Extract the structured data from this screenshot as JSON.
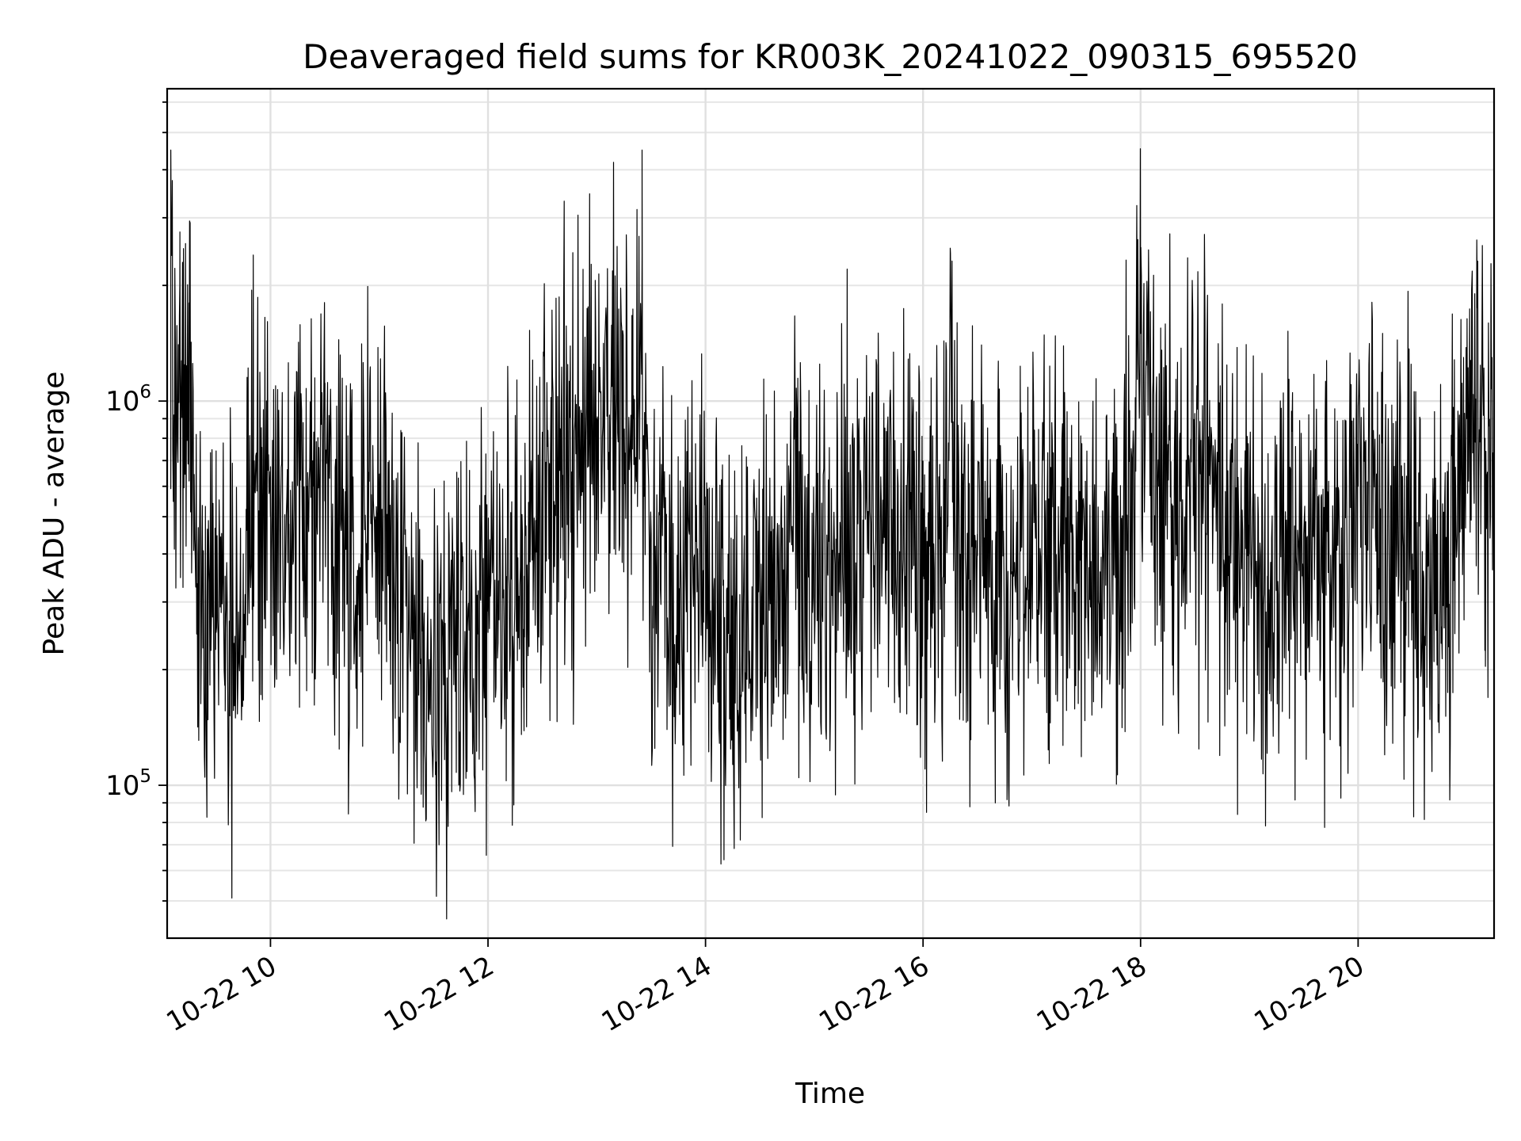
{
  "chart_data": {
    "type": "line",
    "title": "Deaveraged field sums for KR003K_20241022_090315_695520",
    "xlabel": "Time",
    "ylabel": "Peak ADU - average",
    "yscale": "log",
    "grid": true,
    "xlim": [
      "2024-10-22T09:03",
      "2024-10-22T21:15"
    ],
    "ylim": [
      40000,
      6500000
    ],
    "xticks": [
      {
        "time": "2024-10-22T10:00",
        "label": "10-22 10"
      },
      {
        "time": "2024-10-22T12:00",
        "label": "10-22 12"
      },
      {
        "time": "2024-10-22T14:00",
        "label": "10-22 14"
      },
      {
        "time": "2024-10-22T16:00",
        "label": "10-22 16"
      },
      {
        "time": "2024-10-22T18:00",
        "label": "10-22 18"
      },
      {
        "time": "2024-10-22T20:00",
        "label": "10-22 20"
      }
    ],
    "yticks": [
      {
        "value": 100000,
        "base": "10",
        "exp": "5"
      },
      {
        "value": 1000000,
        "base": "10",
        "exp": "6"
      }
    ],
    "series": [
      {
        "color": "#000000",
        "x": [
          "2024-10-22T09:05",
          "2024-10-22T09:10",
          "2024-10-22T09:15",
          "2024-10-22T09:20",
          "2024-10-22T09:25",
          "2024-10-22T09:30",
          "2024-10-22T09:35",
          "2024-10-22T09:40",
          "2024-10-22T09:45",
          "2024-10-22T09:50",
          "2024-10-22T09:55",
          "2024-10-22T10:00",
          "2024-10-22T10:10",
          "2024-10-22T10:20",
          "2024-10-22T10:30",
          "2024-10-22T10:40",
          "2024-10-22T10:50",
          "2024-10-22T11:00",
          "2024-10-22T11:10",
          "2024-10-22T11:20",
          "2024-10-22T11:30",
          "2024-10-22T11:40",
          "2024-10-22T11:50",
          "2024-10-22T12:00",
          "2024-10-22T12:10",
          "2024-10-22T12:20",
          "2024-10-22T12:30",
          "2024-10-22T12:40",
          "2024-10-22T12:50",
          "2024-10-22T13:00",
          "2024-10-22T13:10",
          "2024-10-22T13:20",
          "2024-10-22T13:25",
          "2024-10-22T13:30",
          "2024-10-22T13:40",
          "2024-10-22T13:50",
          "2024-10-22T14:00",
          "2024-10-22T14:10",
          "2024-10-22T14:20",
          "2024-10-22T14:30",
          "2024-10-22T14:40",
          "2024-10-22T14:50",
          "2024-10-22T15:00",
          "2024-10-22T15:10",
          "2024-10-22T15:20",
          "2024-10-22T15:30",
          "2024-10-22T15:40",
          "2024-10-22T15:50",
          "2024-10-22T16:00",
          "2024-10-22T16:10",
          "2024-10-22T16:15",
          "2024-10-22T16:20",
          "2024-10-22T16:30",
          "2024-10-22T16:40",
          "2024-10-22T16:50",
          "2024-10-22T17:00",
          "2024-10-22T17:10",
          "2024-10-22T17:20",
          "2024-10-22T17:30",
          "2024-10-22T17:40",
          "2024-10-22T17:50",
          "2024-10-22T18:00",
          "2024-10-22T18:10",
          "2024-10-22T18:20",
          "2024-10-22T18:30",
          "2024-10-22T18:40",
          "2024-10-22T18:50",
          "2024-10-22T19:00",
          "2024-10-22T19:10",
          "2024-10-22T19:20",
          "2024-10-22T19:30",
          "2024-10-22T19:40",
          "2024-10-22T19:50",
          "2024-10-22T20:00",
          "2024-10-22T20:10",
          "2024-10-22T20:20",
          "2024-10-22T20:30",
          "2024-10-22T20:40",
          "2024-10-22T20:50",
          "2024-10-22T21:00",
          "2024-10-22T21:10"
        ],
        "y": [
          4500000,
          2000000,
          1800000,
          400000,
          300000,
          250000,
          350000,
          200000,
          400000,
          700000,
          600000,
          500000,
          450000,
          600000,
          550000,
          500000,
          400000,
          600000,
          300000,
          250000,
          200000,
          180000,
          220000,
          250000,
          300000,
          350000,
          450000,
          650000,
          800000,
          900000,
          1000000,
          900000,
          4500000,
          450000,
          350000,
          300000,
          400000,
          250000,
          220000,
          300000,
          350000,
          400000,
          300000,
          350000,
          500000,
          400000,
          450000,
          350000,
          350000,
          500000,
          2500000,
          400000,
          450000,
          400000,
          350000,
          380000,
          400000,
          420000,
          380000,
          350000,
          400000,
          1500000,
          600000,
          500000,
          700000,
          500000,
          450000,
          400000,
          350000,
          400000,
          450000,
          400000,
          300000,
          600000,
          500000,
          450000,
          400000,
          350000,
          300000,
          900000,
          800000
        ]
      }
    ]
  }
}
